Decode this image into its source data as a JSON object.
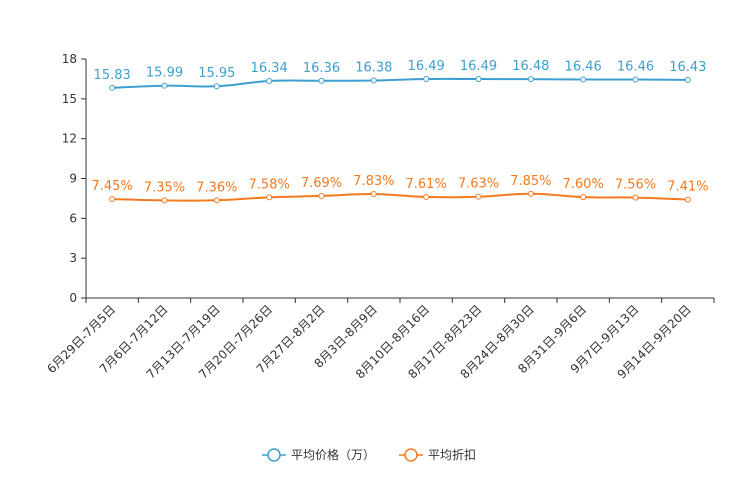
{
  "chart_data": {
    "type": "line",
    "title": "",
    "xlabel": "",
    "ylabel": "",
    "ylim": [
      0,
      18
    ],
    "yticks": [
      0,
      3,
      6,
      9,
      12,
      15,
      18
    ],
    "grid": false,
    "legend_position": "bottom-center",
    "categories": [
      "6月29日-7月5日",
      "7月6日-7月12日",
      "7月13日-7月19日",
      "7月20日-7月26日",
      "7月27日-8月2日",
      "8月3日-8月9日",
      "8月10日-8月16日",
      "8月17日-8月23日",
      "8月24日-8月30日",
      "8月31日-9月6日",
      "9月7日-9月13日",
      "9月14日-9月20日"
    ],
    "series": [
      {
        "name": "平均价格（万）",
        "color": "#3d9fd0",
        "values": [
          15.83,
          15.99,
          15.95,
          16.34,
          16.36,
          16.38,
          16.49,
          16.49,
          16.48,
          16.46,
          16.46,
          16.43
        ],
        "labels": [
          "15.83",
          "15.99",
          "15.95",
          "16.34",
          "16.36",
          "16.38",
          "16.49",
          "16.49",
          "16.48",
          "16.46",
          "16.46",
          "16.43"
        ]
      },
      {
        "name": "平均折扣",
        "color": "#f47a1f",
        "values": [
          7.45,
          7.35,
          7.36,
          7.58,
          7.69,
          7.83,
          7.61,
          7.63,
          7.85,
          7.6,
          7.56,
          7.41
        ],
        "labels": [
          "7.45%",
          "7.35%",
          "7.36%",
          "7.58%",
          "7.69%",
          "7.83%",
          "7.61%",
          "7.63%",
          "7.85%",
          "7.60%",
          "7.56%",
          "7.41%"
        ]
      }
    ]
  }
}
